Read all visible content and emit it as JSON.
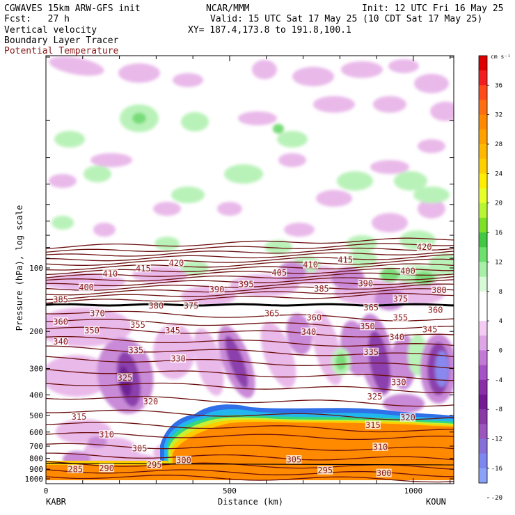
{
  "header": {
    "model": "CGWAVES 15km ARW-GFS init",
    "org": "NCAR/MMM",
    "init": "Init: 12 UTC Fri 16 May 25",
    "fcst": "Fcst:   27 h",
    "valid": "Valid: 15 UTC Sat 17 May 25 (10 CDT Sat 17 May 25)",
    "field1": "Vertical velocity",
    "field2": "Boundary Layer Tracer",
    "field3": "Potential Temperature",
    "xy": "XY= 187.4,173.8 to 191.8,100.1"
  },
  "colors": {
    "contour": "#6b0f0f",
    "tracer_line": "#000000",
    "label_maroon": "#8b1a1a"
  },
  "chart_data": {
    "type": "heatmap",
    "xlabel": "Distance (km)",
    "ylabel": "Pressure (hPa), log scale",
    "x_ticks": [
      0,
      500,
      1000
    ],
    "xlim": [
      0,
      1110
    ],
    "y_ticks": [
      100,
      200,
      300,
      400,
      500,
      600,
      700,
      800,
      900,
      1000
    ],
    "ylim": [
      1030,
      11
    ],
    "y_scale": "log",
    "endpoint_left": "KABR",
    "endpoint_right": "KOUN",
    "colorbar": {
      "units": "cm s⁻¹",
      "ticks": [
        36,
        32,
        28,
        24,
        20,
        16,
        12,
        8,
        4,
        0,
        -4,
        -8,
        -12,
        -16,
        -20
      ],
      "colors": [
        "#dd0000",
        "#f21e1e",
        "#ff4a1a",
        "#ff6e10",
        "#ff8a00",
        "#ffa200",
        "#ffb800",
        "#ffd000",
        "#ffee00",
        "#e7ff2a",
        "#b8f535",
        "#7fe02a",
        "#42c842",
        "#6ee06e",
        "#a7f0a7",
        "#d7fad7",
        "#ffffff",
        "#ffffff",
        "#f3cbf3",
        "#dfa6e6",
        "#c27ad6",
        "#a553c6",
        "#8b2fa8",
        "#731a94",
        "#8a3aa6",
        "#9a55be",
        "#8670d8",
        "#7e86f0",
        "#8aa2f8"
      ]
    },
    "theta_labels": [
      {
        "text": "420",
        "x": 355,
        "p": 95
      },
      {
        "text": "415",
        "x": 265,
        "p": 101
      },
      {
        "text": "410",
        "x": 175,
        "p": 107
      },
      {
        "text": "415",
        "x": 815,
        "p": 92
      },
      {
        "text": "410",
        "x": 720,
        "p": 97
      },
      {
        "text": "405",
        "x": 635,
        "p": 106
      },
      {
        "text": "420",
        "x": 1030,
        "p": 80
      },
      {
        "text": "400",
        "x": 985,
        "p": 104
      },
      {
        "text": "380",
        "x": 1070,
        "p": 128
      },
      {
        "text": "400",
        "x": 110,
        "p": 124
      },
      {
        "text": "395",
        "x": 545,
        "p": 120
      },
      {
        "text": "390",
        "x": 465,
        "p": 127
      },
      {
        "text": "390",
        "x": 870,
        "p": 119
      },
      {
        "text": "385",
        "x": 750,
        "p": 126
      },
      {
        "text": "385",
        "x": 40,
        "p": 142
      },
      {
        "text": "375",
        "x": 965,
        "p": 141
      },
      {
        "text": "380",
        "x": 300,
        "p": 152
      },
      {
        "text": "375",
        "x": 395,
        "p": 152
      },
      {
        "text": "370",
        "x": 140,
        "p": 165
      },
      {
        "text": "365",
        "x": 615,
        "p": 165
      },
      {
        "text": "365",
        "x": 885,
        "p": 155
      },
      {
        "text": "360",
        "x": 1060,
        "p": 159
      },
      {
        "text": "360",
        "x": 730,
        "p": 173
      },
      {
        "text": "355",
        "x": 965,
        "p": 173
      },
      {
        "text": "360",
        "x": 40,
        "p": 181
      },
      {
        "text": "355",
        "x": 250,
        "p": 187
      },
      {
        "text": "350",
        "x": 125,
        "p": 199
      },
      {
        "text": "350",
        "x": 875,
        "p": 190
      },
      {
        "text": "345",
        "x": 1045,
        "p": 197
      },
      {
        "text": "345",
        "x": 345,
        "p": 199
      },
      {
        "text": "340",
        "x": 715,
        "p": 202
      },
      {
        "text": "340",
        "x": 955,
        "p": 214
      },
      {
        "text": "340",
        "x": 40,
        "p": 225
      },
      {
        "text": "335",
        "x": 245,
        "p": 247
      },
      {
        "text": "335",
        "x": 885,
        "p": 252
      },
      {
        "text": "330",
        "x": 360,
        "p": 271
      },
      {
        "text": "325",
        "x": 215,
        "p": 333
      },
      {
        "text": "330",
        "x": 960,
        "p": 350
      },
      {
        "text": "325",
        "x": 895,
        "p": 410
      },
      {
        "text": "320",
        "x": 285,
        "p": 432
      },
      {
        "text": "320",
        "x": 985,
        "p": 515
      },
      {
        "text": "315",
        "x": 90,
        "p": 510
      },
      {
        "text": "315",
        "x": 890,
        "p": 560
      },
      {
        "text": "310",
        "x": 165,
        "p": 620
      },
      {
        "text": "310",
        "x": 910,
        "p": 710
      },
      {
        "text": "305",
        "x": 255,
        "p": 720
      },
      {
        "text": "305",
        "x": 675,
        "p": 815
      },
      {
        "text": "300",
        "x": 375,
        "p": 820
      },
      {
        "text": "300",
        "x": 920,
        "p": 945
      },
      {
        "text": "295",
        "x": 295,
        "p": 862
      },
      {
        "text": "295",
        "x": 760,
        "p": 918
      },
      {
        "text": "290",
        "x": 165,
        "p": 895
      },
      {
        "text": "285",
        "x": 80,
        "p": 905
      }
    ]
  }
}
